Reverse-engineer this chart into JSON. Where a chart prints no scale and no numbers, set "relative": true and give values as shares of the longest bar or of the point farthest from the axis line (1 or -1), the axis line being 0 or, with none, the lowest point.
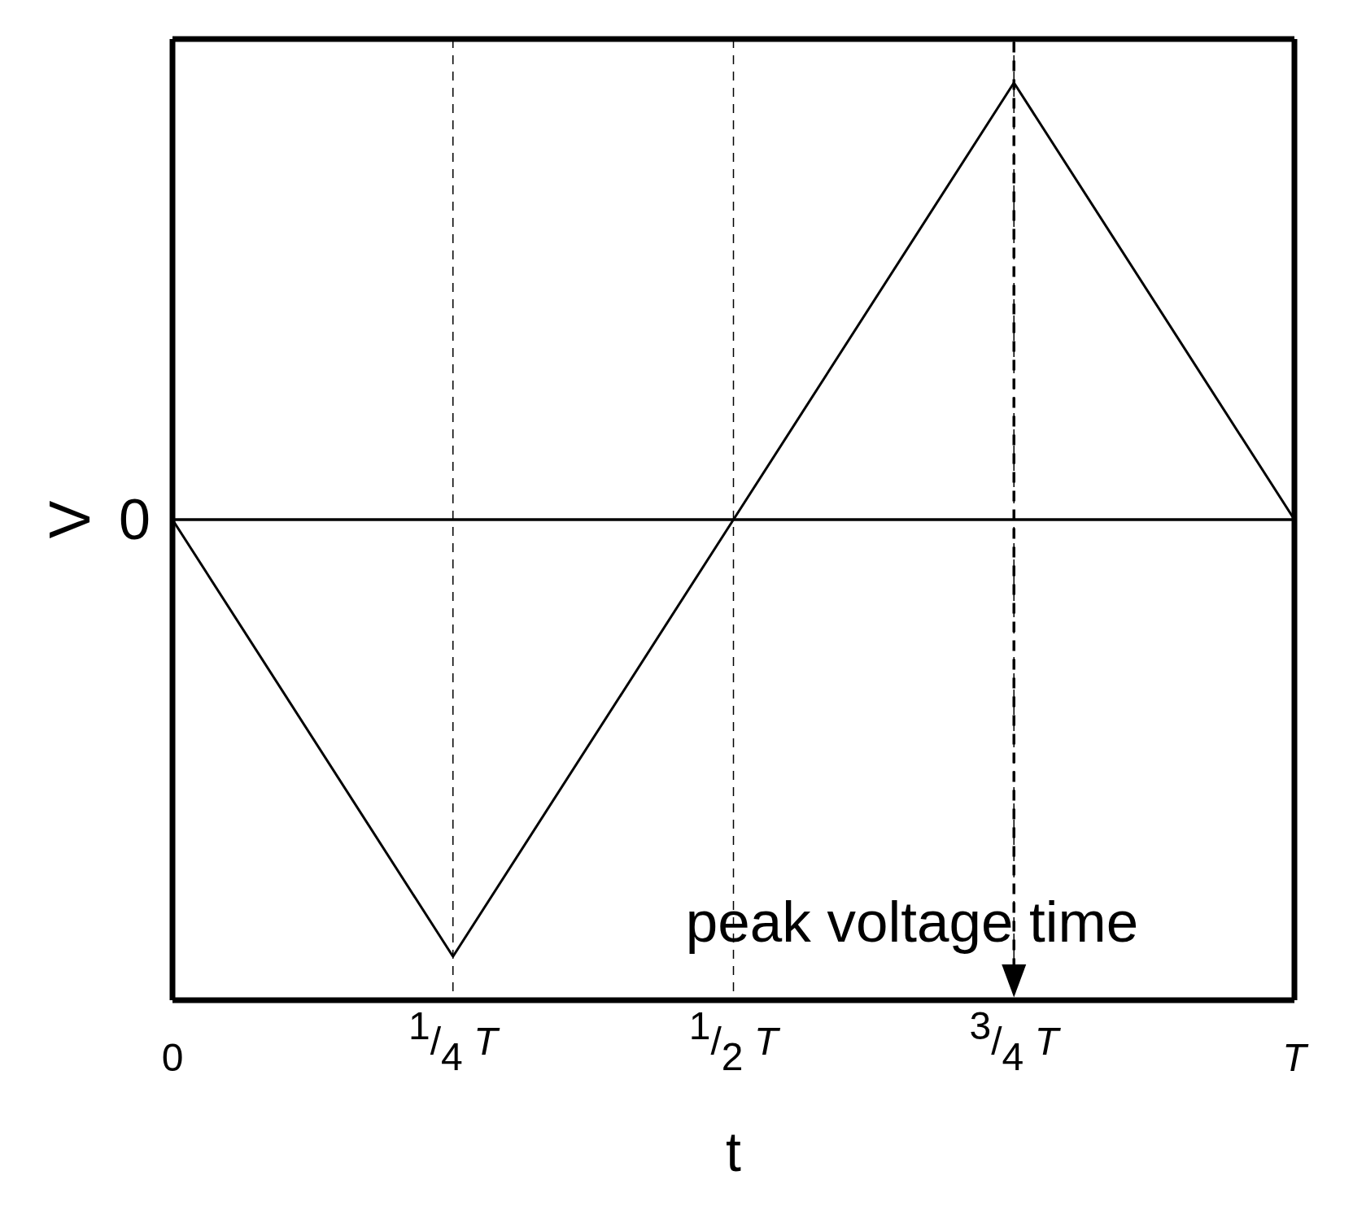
{
  "chart_data": {
    "type": "line",
    "xlabel": "t",
    "ylabel": "V",
    "categories": [
      "0",
      "1/4 T",
      "1/2 T",
      "3/4 T",
      "T"
    ],
    "values": [
      0,
      -1,
      0,
      1,
      0
    ],
    "color": "#000000",
    "relative": true,
    "grid": "x",
    "ref_lines": [
      {
        "axis": "y",
        "value": 0,
        "label": "0",
        "color": "#000000",
        "line_style": "solid"
      },
      {
        "axis": "x",
        "value": "3/4 T",
        "label": "peak voltage time",
        "color": "#000000",
        "line_style": "dashed"
      }
    ]
  }
}
